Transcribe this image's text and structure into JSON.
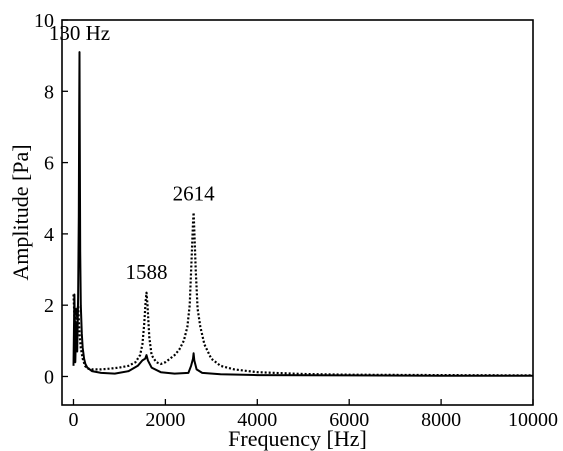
{
  "chart_data": {
    "type": "line",
    "title": "",
    "xlabel": "Frequency [Hz]",
    "ylabel": "Amplitude [Pa]",
    "xlim": [
      -250,
      10000
    ],
    "ylim": [
      -0.8,
      10
    ],
    "grid": false,
    "legend": "none",
    "xticks": [
      0,
      2000,
      4000,
      6000,
      8000,
      10000
    ],
    "yticks": [
      0,
      2,
      4,
      6,
      8,
      10
    ],
    "xtick_labels": [
      "0",
      "2000",
      "4000",
      "6000",
      "8000",
      "10000"
    ],
    "ytick_labels": [
      "0",
      "2",
      "4",
      "6",
      "8",
      "10"
    ],
    "annotations": [
      {
        "text": "130 Hz",
        "x": 130,
        "y": 9.1
      },
      {
        "text": "1588",
        "x": 1588,
        "y": 2.4
      },
      {
        "text": "2614",
        "x": 2614,
        "y": 4.6
      }
    ],
    "series": [
      {
        "style": "solid",
        "color": "#000000",
        "x": [
          0,
          20,
          40,
          60,
          80,
          100,
          115,
          125,
          130,
          135,
          145,
          160,
          180,
          200,
          230,
          260,
          300,
          400,
          600,
          900,
          1200,
          1400,
          1500,
          1560,
          1588,
          1620,
          1700,
          1900,
          2200,
          2500,
          2560,
          2600,
          2614,
          2630,
          2680,
          2800,
          3200,
          4000,
          6000,
          8000,
          10000
        ],
        "y": [
          0.3,
          2.3,
          0.4,
          1.5,
          0.7,
          2.2,
          4.5,
          7.5,
          9.1,
          7.2,
          3.5,
          2.0,
          1.2,
          0.8,
          0.5,
          0.35,
          0.25,
          0.15,
          0.1,
          0.08,
          0.15,
          0.3,
          0.45,
          0.5,
          0.6,
          0.45,
          0.25,
          0.12,
          0.08,
          0.1,
          0.3,
          0.5,
          0.65,
          0.45,
          0.2,
          0.1,
          0.06,
          0.04,
          0.03,
          0.02,
          0.02
        ]
      },
      {
        "style": "dotted",
        "color": "#000000",
        "x": [
          0,
          20,
          40,
          60,
          80,
          100,
          130,
          160,
          200,
          250,
          300,
          400,
          600,
          800,
          1000,
          1200,
          1350,
          1450,
          1500,
          1540,
          1570,
          1588,
          1610,
          1650,
          1700,
          1800,
          1900,
          2000,
          2100,
          2200,
          2300,
          2400,
          2480,
          2530,
          2570,
          2600,
          2614,
          2630,
          2660,
          2700,
          2760,
          2850,
          3000,
          3200,
          3500,
          4000,
          5000,
          6000,
          8000,
          10000
        ],
        "y": [
          2.3,
          1.7,
          1.4,
          1.9,
          1.6,
          2.0,
          1.2,
          0.8,
          0.5,
          0.3,
          0.22,
          0.2,
          0.2,
          0.22,
          0.25,
          0.3,
          0.4,
          0.6,
          0.9,
          1.5,
          2.1,
          2.35,
          2.0,
          1.1,
          0.6,
          0.4,
          0.35,
          0.4,
          0.5,
          0.6,
          0.75,
          1.0,
          1.4,
          2.0,
          3.3,
          4.3,
          4.6,
          4.1,
          3.0,
          1.9,
          1.4,
          0.9,
          0.5,
          0.3,
          0.2,
          0.12,
          0.07,
          0.05,
          0.04,
          0.03
        ]
      }
    ]
  }
}
